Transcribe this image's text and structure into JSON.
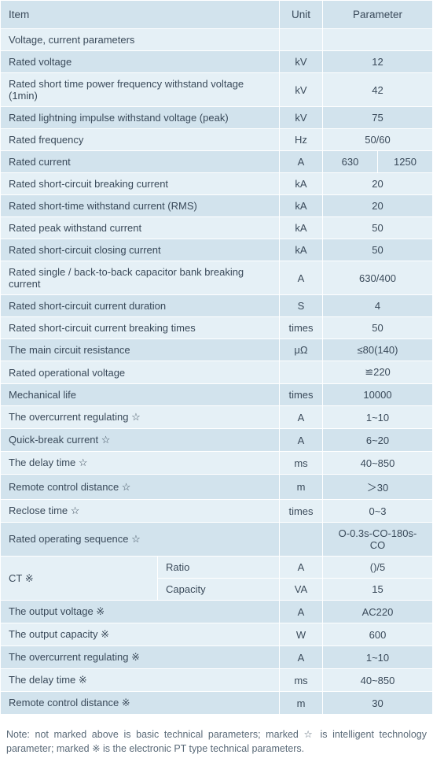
{
  "header": {
    "item": "Item",
    "unit": "Unit",
    "parameter": "Parameter"
  },
  "rows": {
    "r0": {
      "item": "Voltage, current parameters",
      "unit": "",
      "param": ""
    },
    "r1": {
      "item": "Rated voltage",
      "unit": "kV",
      "param": "12"
    },
    "r2": {
      "item": "Rated short time power frequency withstand voltage (1min)",
      "unit": "kV",
      "param": "42"
    },
    "r3": {
      "item": "Rated lightning impulse withstand voltage (peak)",
      "unit": "kV",
      "param": "75"
    },
    "r4": {
      "item": "Rated frequency",
      "unit": "Hz",
      "param": "50/60"
    },
    "r5": {
      "item": "Rated current",
      "unit": "A",
      "paramA": "630",
      "paramB": "1250"
    },
    "r6": {
      "item": "Rated short-circuit breaking current",
      "unit": "kA",
      "param": "20"
    },
    "r7": {
      "item": "Rated short-time withstand current (RMS)",
      "unit": "kA",
      "param": "20"
    },
    "r8": {
      "item": "Rated peak withstand current",
      "unit": "kA",
      "param": "50"
    },
    "r9": {
      "item": "Rated short-circuit closing current",
      "unit": "kA",
      "param": "50"
    },
    "r10": {
      "item": "Rated single / back-to-back capacitor bank breaking current",
      "unit": "A",
      "param": "630/400"
    },
    "r11": {
      "item": "Rated short-circuit current duration",
      "unit": "S",
      "param": "4"
    },
    "r12": {
      "item": "Rated short-circuit current breaking times",
      "unit": "times",
      "param": "50"
    },
    "r13": {
      "item": "The main circuit resistance",
      "unit": "μΩ",
      "param": "≤80(140)"
    },
    "r14": {
      "item": "Rated operational voltage",
      "unit": "",
      "param": "≌220"
    },
    "r15": {
      "item": "Mechanical life",
      "unit": "times",
      "param": "10000"
    },
    "r16": {
      "item": "The overcurrent regulating ☆",
      "unit": "A",
      "param": "1~10"
    },
    "r17": {
      "item": "Quick-break current ☆",
      "unit": "A",
      "param": "6~20"
    },
    "r18": {
      "item": "The delay time ☆",
      "unit": "ms",
      "param": "40~850"
    },
    "r19": {
      "item": "Remote control distance ☆",
      "unit": "m",
      "param": "＞30"
    },
    "r20": {
      "item": "Reclose time ☆",
      "unit": "times",
      "param": "0~3"
    },
    "r21": {
      "item": "Rated operating sequence ☆",
      "unit": "",
      "param": "O-0.3s-CO-180s-CO"
    },
    "ct": {
      "label": "CT ※",
      "sub1": {
        "label": "Ratio",
        "unit": "A",
        "param": "()/5"
      },
      "sub2": {
        "label": "Capacity",
        "unit": "VA",
        "param": "15"
      }
    },
    "r24": {
      "item": "The output voltage ※",
      "unit": "A",
      "param": "AC220"
    },
    "r25": {
      "item": "The output capacity ※",
      "unit": "W",
      "param": "600"
    },
    "r26": {
      "item": "The overcurrent regulating ※",
      "unit": "A",
      "param": "1~10"
    },
    "r27": {
      "item": "The delay time ※",
      "unit": "ms",
      "param": "40~850"
    },
    "r28": {
      "item": "Remote control distance ※",
      "unit": "m",
      "param": "30"
    }
  },
  "note": "Note: not marked above is basic technical parameters; marked ☆ is intelligent technology parameter; marked ※ is the electronic PT type technical parameters."
}
